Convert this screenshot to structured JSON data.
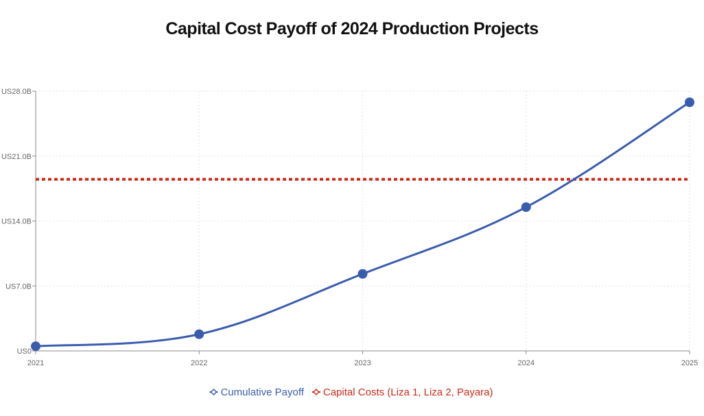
{
  "chart_data": {
    "type": "line",
    "title": "Capital Cost Payoff of 2024 Production Projects",
    "x": [
      "2021",
      "2022",
      "2023",
      "2024",
      "2025"
    ],
    "xlabel": "",
    "ylabel": "",
    "ylim": [
      0,
      28
    ],
    "y_ticks": [
      0,
      7,
      14,
      21,
      28
    ],
    "y_tick_labels": [
      "US0",
      "US7.0B",
      "US14.0B",
      "US21.0B",
      "US28.0B"
    ],
    "grid": true,
    "legend_position": "bottom",
    "series": [
      {
        "name": "Cumulative Payoff",
        "values": [
          0.5,
          1.8,
          8.3,
          15.5,
          26.8
        ],
        "color": "#3a5cad",
        "style": "solid-line-with-markers",
        "marker_icon": "diamond-icon"
      },
      {
        "name": "Capital Costs (Liza 1, Liza 2, Payara)",
        "values": [
          18.5,
          18.5,
          18.5,
          18.5,
          18.5
        ],
        "color": "#cc2a1a",
        "style": "dotted-line",
        "marker_icon": "diamond-icon"
      }
    ]
  }
}
